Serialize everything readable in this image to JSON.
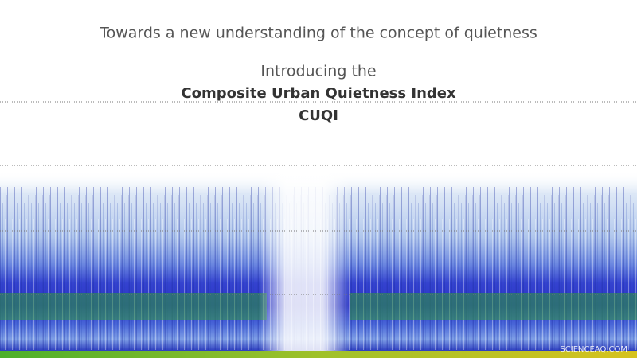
{
  "header": {
    "title": "Towards a new understanding of the concept of quietness"
  },
  "intro": {
    "lead": "Introducing the",
    "name": "Composite Urban Quietness Index",
    "acronym": "CUQI"
  },
  "watermark": "SCIENCEAQ.COM"
}
